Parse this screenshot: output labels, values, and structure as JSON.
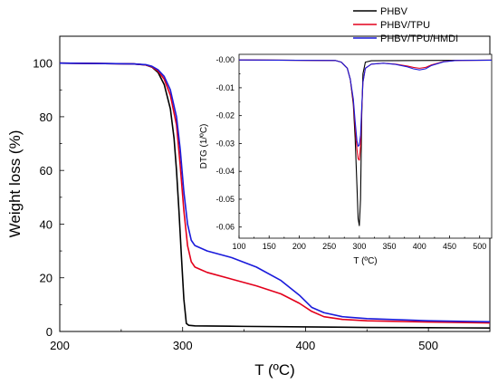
{
  "chart_data": [
    {
      "id": "main",
      "type": "line",
      "xlabel": "T (ºC)",
      "ylabel": "Weight loss (%)",
      "xlim": [
        200,
        550
      ],
      "ylim": [
        0,
        110
      ],
      "xticks": [
        200,
        300,
        400,
        500
      ],
      "xtick_labels": [
        "200",
        "300",
        "400",
        "500"
      ],
      "yticks": [
        0,
        20,
        40,
        60,
        80,
        100
      ],
      "ytick_labels": [
        "0",
        "20",
        "40",
        "60",
        "80",
        "100"
      ],
      "grid": false,
      "legend": "top-right",
      "series": [
        {
          "name": "PHBV",
          "color": "#000000",
          "x": [
            200,
            260,
            270,
            275,
            280,
            285,
            290,
            293,
            295,
            297,
            299,
            301,
            303,
            305,
            310,
            350,
            400,
            450,
            500,
            550
          ],
          "y": [
            100,
            99.7,
            99.3,
            98.5,
            96.5,
            92,
            83,
            72,
            60,
            45,
            28,
            12,
            3,
            2.3,
            2.1,
            1.9,
            1.7,
            1.5,
            1.4,
            1.3
          ]
        },
        {
          "name": "PHBV/TPU",
          "color": "#e3001b",
          "x": [
            200,
            260,
            270,
            275,
            280,
            285,
            290,
            295,
            298,
            301,
            304,
            307,
            310,
            315,
            320,
            340,
            360,
            380,
            395,
            405,
            415,
            430,
            450,
            500,
            550
          ],
          "y": [
            100,
            99.7,
            99.3,
            98.6,
            97,
            94,
            88,
            77,
            62,
            45,
            32,
            26,
            24,
            23,
            22,
            19.5,
            17,
            14,
            10.5,
            7.5,
            5.5,
            4.5,
            4,
            3.5,
            3.2
          ]
        },
        {
          "name": "PHBV/TPU/HMDI",
          "color": "#1a1adb",
          "x": [
            200,
            260,
            270,
            275,
            280,
            285,
            290,
            295,
            298,
            301,
            304,
            307,
            310,
            315,
            320,
            340,
            360,
            380,
            395,
            405,
            415,
            430,
            450,
            500,
            550
          ],
          "y": [
            100,
            99.7,
            99.4,
            98.8,
            97.5,
            95,
            90,
            80,
            68,
            52,
            40,
            34,
            32,
            31,
            30,
            27.5,
            24,
            19,
            13.5,
            9,
            7,
            5.5,
            4.8,
            4,
            3.6
          ]
        }
      ]
    },
    {
      "id": "inset",
      "type": "line",
      "xlabel": "T (ºC)",
      "ylabel": "DTG (1/ºC)",
      "xlim": [
        100,
        520
      ],
      "ylim": [
        -0.064,
        0.002
      ],
      "xticks": [
        100,
        150,
        200,
        250,
        300,
        350,
        400,
        450,
        500
      ],
      "xtick_labels": [
        "100",
        "150",
        "200",
        "250",
        "300",
        "350",
        "400",
        "450",
        "500"
      ],
      "yticks": [
        0,
        -0.01,
        -0.02,
        -0.03,
        -0.04,
        -0.05,
        -0.06
      ],
      "ytick_labels": [
        "-0.00",
        "-0.01",
        "-0.02",
        "-0.03",
        "-0.04",
        "-0.05",
        "-0.06"
      ],
      "grid": false,
      "series": [
        {
          "name": "PHBV",
          "color": "#000000",
          "x": [
            100,
            260,
            270,
            280,
            285,
            290,
            293,
            296,
            298,
            300,
            302,
            304,
            306,
            310,
            320,
            400,
            520
          ],
          "y": [
            0,
            -0.0002,
            -0.0008,
            -0.003,
            -0.007,
            -0.016,
            -0.028,
            -0.045,
            -0.057,
            -0.0595,
            -0.05,
            -0.02,
            -0.005,
            -0.0008,
            -0.0003,
            -0.0002,
            -0.0001
          ]
        },
        {
          "name": "PHBV/TPU",
          "color": "#e3001b",
          "x": [
            100,
            260,
            270,
            280,
            285,
            290,
            293,
            296,
            298,
            300,
            302,
            304,
            306,
            310,
            320,
            340,
            360,
            380,
            390,
            400,
            410,
            420,
            440,
            460,
            520
          ],
          "y": [
            0,
            -0.0002,
            -0.0008,
            -0.003,
            -0.007,
            -0.015,
            -0.024,
            -0.032,
            -0.0355,
            -0.036,
            -0.031,
            -0.018,
            -0.008,
            -0.003,
            -0.0015,
            -0.0012,
            -0.0015,
            -0.0022,
            -0.0027,
            -0.003,
            -0.0027,
            -0.0018,
            -0.0006,
            -0.0002,
            -0.0001
          ]
        },
        {
          "name": "PHBV/TPU/HMDI",
          "color": "#1a1adb",
          "x": [
            100,
            260,
            270,
            280,
            285,
            290,
            293,
            296,
            298,
            300,
            302,
            304,
            306,
            310,
            320,
            340,
            360,
            380,
            390,
            400,
            410,
            420,
            440,
            460,
            520
          ],
          "y": [
            0,
            -0.0002,
            -0.0008,
            -0.003,
            -0.007,
            -0.014,
            -0.022,
            -0.029,
            -0.031,
            -0.0305,
            -0.027,
            -0.017,
            -0.008,
            -0.003,
            -0.0015,
            -0.0012,
            -0.0016,
            -0.0025,
            -0.0032,
            -0.0036,
            -0.0032,
            -0.002,
            -0.0007,
            -0.0002,
            -0.0001
          ]
        }
      ]
    }
  ]
}
